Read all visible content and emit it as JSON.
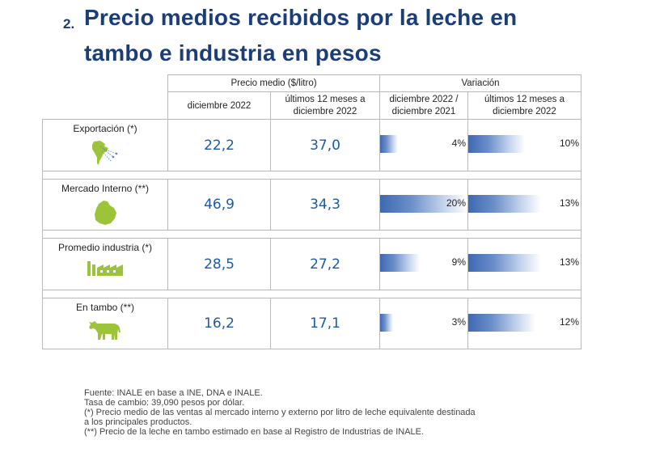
{
  "title": {
    "number": "2.",
    "line1": "Precio medios recibidos por la leche en",
    "line2": "tambo e industria en pesos"
  },
  "table": {
    "group_headers": {
      "precio": "Precio medio ($/litro)",
      "variacion": "Variación"
    },
    "sub_headers": {
      "dic": "diciembre 2022",
      "ult12_line1": "últimos 12 meses a",
      "ult12_line2": "diciembre 2022",
      "var_dic_line1": "diciembre 2022 /",
      "var_dic_line2": "diciembre 2021",
      "var_ult_line1": "últimos 12 meses a",
      "var_ult_line2": "diciembre 2022"
    },
    "rows": [
      {
        "label": "Exportación (*)",
        "icon": "south-america-map-icon",
        "dic": "22,2",
        "ult12": "37,0",
        "var_dic": "4%",
        "var_dic_value": 4,
        "var_ult": "10%",
        "var_ult_value": 10
      },
      {
        "label": "Mercado Interno (**)",
        "icon": "uruguay-map-icon",
        "dic": "46,9",
        "ult12": "34,3",
        "var_dic": "20%",
        "var_dic_value": 20,
        "var_ult": "13%",
        "var_ult_value": 13
      },
      {
        "label": "Promedio industria (*)",
        "icon": "factory-icon",
        "dic": "28,5",
        "ult12": "27,2",
        "var_dic": "9%",
        "var_dic_value": 9,
        "var_ult": "13%",
        "var_ult_value": 13
      },
      {
        "label": "En tambo (**)",
        "icon": "cow-icon",
        "dic": "16,2",
        "ult12": "17,1",
        "var_dic": "3%",
        "var_dic_value": 3,
        "var_ult": "12%",
        "var_ult_value": 12
      }
    ]
  },
  "footnotes": [
    "Fuente: INALE en base a INE, DNA e INALE.",
    "Tasa de cambio: 39,090 pesos por dólar.",
    "(*) Precio medio de las ventas al mercado interno y externo por litro de leche equivalente destinada",
    "a los principales productos.",
    "(**) Precio de la leche en tambo estimado en base al Registro de Industrias de INALE."
  ],
  "colors": {
    "title": "#1b3d78",
    "value": "#1a5aa8",
    "icon_green": "#9cc43a",
    "bar": "#3e69b2"
  }
}
